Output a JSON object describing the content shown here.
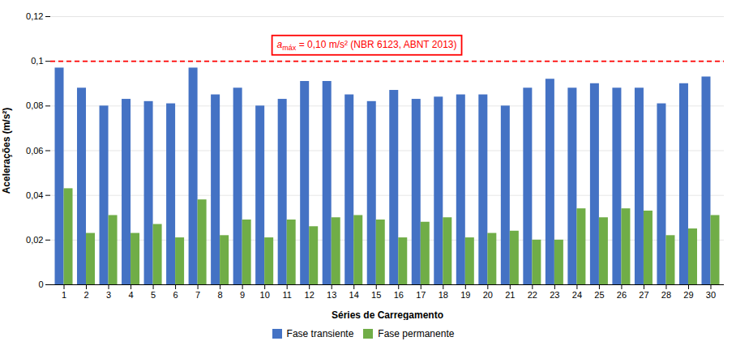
{
  "chart_data": {
    "type": "bar",
    "categories": [
      1,
      2,
      3,
      4,
      5,
      6,
      7,
      8,
      9,
      10,
      11,
      12,
      13,
      14,
      15,
      16,
      17,
      18,
      19,
      20,
      21,
      22,
      23,
      24,
      25,
      26,
      27,
      28,
      29,
      30
    ],
    "series": [
      {
        "name": "Fase transiente",
        "color": "#4472C4",
        "values": [
          0.097,
          0.088,
          0.08,
          0.083,
          0.082,
          0.081,
          0.097,
          0.085,
          0.088,
          0.08,
          0.083,
          0.091,
          0.091,
          0.085,
          0.082,
          0.087,
          0.083,
          0.084,
          0.085,
          0.085,
          0.08,
          0.088,
          0.092,
          0.088,
          0.09,
          0.088,
          0.088,
          0.081,
          0.09,
          0.093
        ]
      },
      {
        "name": "Fase permanente",
        "color": "#70AD47",
        "values": [
          0.043,
          0.023,
          0.031,
          0.023,
          0.027,
          0.021,
          0.038,
          0.022,
          0.029,
          0.021,
          0.029,
          0.026,
          0.03,
          0.031,
          0.029,
          0.021,
          0.028,
          0.03,
          0.021,
          0.023,
          0.024,
          0.02,
          0.02,
          0.034,
          0.03,
          0.034,
          0.033,
          0.022,
          0.025,
          0.031
        ]
      }
    ],
    "xlabel": "Séries de Carregamento",
    "ylabel": "Acelerações (m/s²)",
    "ylim": [
      0,
      0.12
    ],
    "yticks": [
      0,
      {
        "value": 0.02,
        "label": "0,02"
      },
      {
        "value": 0.04,
        "label": "0,04"
      },
      {
        "value": 0.06,
        "label": "0,06"
      },
      {
        "value": 0.08,
        "label": "0,08"
      },
      {
        "value": 0.1,
        "label": "0,1"
      },
      {
        "value": 0.12,
        "label": "0,12"
      }
    ],
    "grid": true,
    "legend": "bottom",
    "reference_line": {
      "y": 0.1,
      "color": "#FF0000",
      "line_style": "dashed"
    },
    "annotations": [
      {
        "base": "a",
        "subscript": "máx",
        "text": " = 0,10 m/s² (NBR 6123, ABNT 2013)",
        "color": "#FF0000"
      }
    ]
  }
}
